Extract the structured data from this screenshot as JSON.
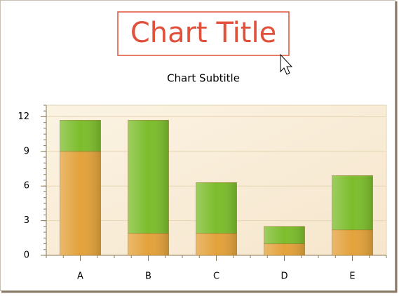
{
  "chart_data": {
    "type": "stacked_bar",
    "title": "Chart Title",
    "subtitle": "Chart Subtitle",
    "categories": [
      "A",
      "B",
      "C",
      "D",
      "E"
    ],
    "series": [
      {
        "color": "#e3a23b",
        "values": [
          9,
          1.9,
          1.9,
          1.0,
          2.2
        ]
      },
      {
        "color": "#7cbd2c",
        "values": [
          2.7,
          9.8,
          4.4,
          1.5,
          4.7
        ]
      }
    ],
    "ylim": [
      0,
      13
    ],
    "yticks": [
      0,
      3,
      6,
      9,
      12
    ],
    "grid": true
  }
}
